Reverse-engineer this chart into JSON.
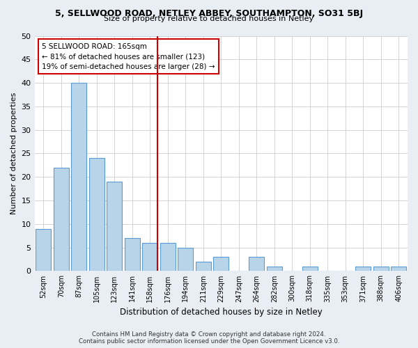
{
  "title": "5, SELLWOOD ROAD, NETLEY ABBEY, SOUTHAMPTON, SO31 5BJ",
  "subtitle": "Size of property relative to detached houses in Netley",
  "xlabel": "Distribution of detached houses by size in Netley",
  "ylabel": "Number of detached properties",
  "categories": [
    "52sqm",
    "70sqm",
    "87sqm",
    "105sqm",
    "123sqm",
    "141sqm",
    "158sqm",
    "176sqm",
    "194sqm",
    "211sqm",
    "229sqm",
    "247sqm",
    "264sqm",
    "282sqm",
    "300sqm",
    "318sqm",
    "335sqm",
    "353sqm",
    "371sqm",
    "388sqm",
    "406sqm"
  ],
  "values": [
    9,
    22,
    40,
    24,
    19,
    7,
    6,
    6,
    5,
    2,
    3,
    0,
    3,
    1,
    0,
    1,
    0,
    0,
    1,
    1,
    1
  ],
  "bar_color": "#b8d4e8",
  "bar_edge_color": "#5b9bd5",
  "highlight_index": 6,
  "highlight_color": "#cc0000",
  "property_line_label": "5 SELLWOOD ROAD: 165sqm",
  "annotation_line1": "← 81% of detached houses are smaller (123)",
  "annotation_line2": "19% of semi-detached houses are larger (28) →",
  "ylim": [
    0,
    50
  ],
  "yticks": [
    0,
    5,
    10,
    15,
    20,
    25,
    30,
    35,
    40,
    45,
    50
  ],
  "footer_line1": "Contains HM Land Registry data © Crown copyright and database right 2024.",
  "footer_line2": "Contains public sector information licensed under the Open Government Licence v3.0.",
  "bg_color": "#e8eef4",
  "plot_bg_color": "#ffffff",
  "grid_color": "#cccccc"
}
